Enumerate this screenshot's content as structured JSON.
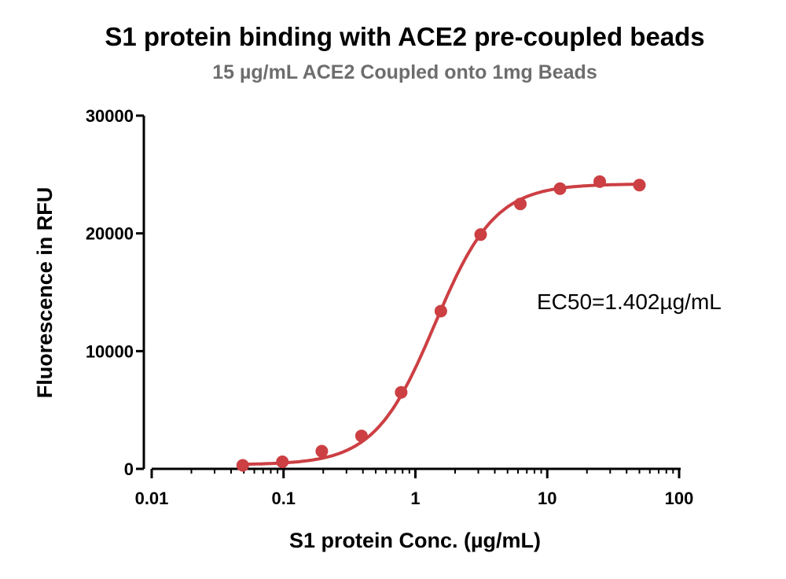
{
  "chart_data": {
    "type": "scatter",
    "title": "S1 protein binding with ACE2 pre-coupled beads",
    "subtitle": "15 µg/mL ACE2 Coupled onto 1mg Beads",
    "xlabel": "S1 protein Conc. (µg/mL)",
    "ylabel": "Fluorescence in RFU",
    "xscale": "log",
    "xlim": [
      0.01,
      100
    ],
    "ylim": [
      0,
      30000
    ],
    "x_ticks": [
      "0.01",
      "0.1",
      "1",
      "10",
      "100"
    ],
    "y_ticks": [
      "0",
      "10000",
      "20000",
      "30000"
    ],
    "grid": false,
    "legend": "none",
    "color": "#cc3f43",
    "annotation": "EC50=1.402µg/mL",
    "series": [
      {
        "x": [
          0.049,
          0.098,
          0.195,
          0.39,
          0.78,
          1.56,
          3.125,
          6.25,
          12.5,
          25,
          50
        ],
        "y": [
          300,
          600,
          1500,
          2800,
          6500,
          13400,
          19900,
          22500,
          23800,
          24400,
          24100
        ]
      }
    ],
    "fit": {
      "type": "sigmoid",
      "ec50": 1.402,
      "bottom": 350,
      "top": 24200,
      "hill": 1.9
    }
  }
}
